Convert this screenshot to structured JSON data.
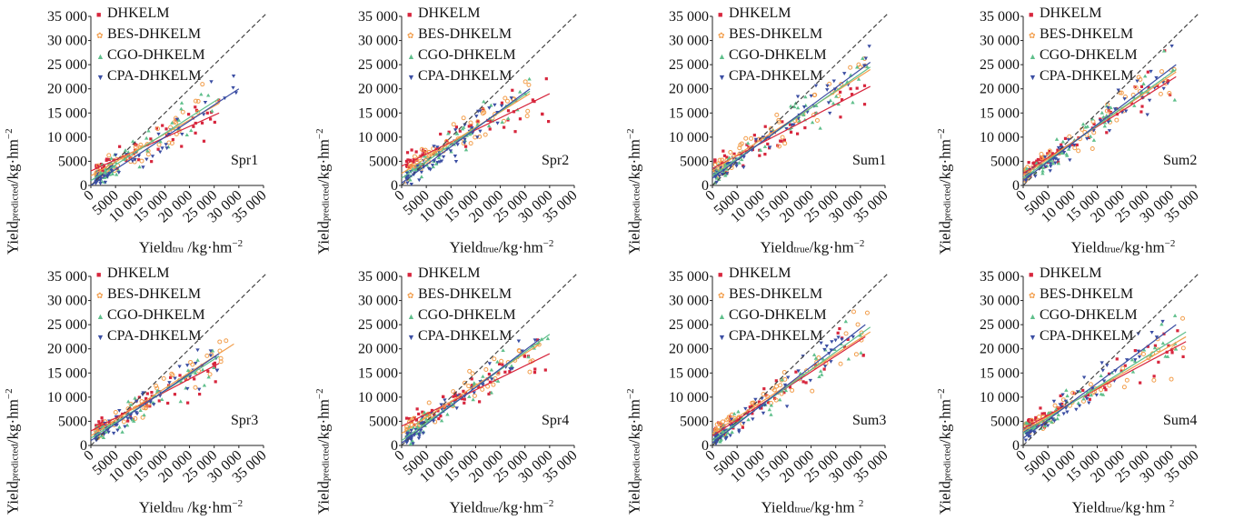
{
  "colors": {
    "DHKELM": "#d7263d",
    "BES-DHKELM": "#f29e4c",
    "CGO-DHKELM": "#5fbf8b",
    "CPA-DHKELM": "#3b4ea3",
    "diagonal": "#444444"
  },
  "markers": {
    "DHKELM": "■",
    "BES-DHKELM": "✿",
    "CGO-DHKELM": "▲",
    "CPA-DHKELM": "▼"
  },
  "legend": [
    "DHKELM",
    "BES-DHKELM",
    "CGO-DHKELM",
    "CPA-DHKELM"
  ],
  "y_label": {
    "main": "Yield",
    "sub": "predicted",
    "unit": "/kg·hm",
    "sup": "−2"
  },
  "chart_data": [
    {
      "type": "scatter",
      "panel": "Spr1",
      "xlabel": {
        "main": "Yield",
        "sub": "tru",
        "unit": " /kg·hm",
        "sup": "−2"
      },
      "xticks": [
        "0",
        "5000",
        "10 000",
        "15 000",
        "20 000",
        "25 000",
        "30 000",
        "35 000"
      ],
      "yticks": [
        "0",
        "5000",
        "10 000",
        "15 000",
        "20 000",
        "25 000",
        "30 000",
        "35 000"
      ],
      "xlim": [
        0,
        35000
      ],
      "ylim": [
        0,
        35000
      ],
      "diagonal": true,
      "series": [
        {
          "name": "DHKELM",
          "fit": [
            [
              0,
              3000
            ],
            [
              26000,
              15000
            ]
          ],
          "cloud": {
            "xmin": 1000,
            "xmax": 26000,
            "slope": 0.46,
            "intercept": 3000,
            "noise": 2600,
            "n": 55
          }
        },
        {
          "name": "BES-DHKELM",
          "fit": [
            [
              0,
              2000
            ],
            [
              26000,
              17000
            ]
          ],
          "cloud": {
            "xmin": 1000,
            "xmax": 26000,
            "slope": 0.58,
            "intercept": 2000,
            "noise": 2800,
            "n": 55
          }
        },
        {
          "name": "CGO-DHKELM",
          "fit": [
            [
              0,
              1000
            ],
            [
              26000,
              18000
            ]
          ],
          "cloud": {
            "xmin": 1000,
            "xmax": 26000,
            "slope": 0.66,
            "intercept": 1000,
            "noise": 2800,
            "n": 55
          }
        },
        {
          "name": "CPA-DHKELM",
          "fit": [
            [
              0,
              0
            ],
            [
              30000,
              20000
            ]
          ],
          "cloud": {
            "xmin": 1000,
            "xmax": 30000,
            "slope": 0.66,
            "intercept": 0,
            "noise": 2800,
            "n": 55
          }
        }
      ]
    },
    {
      "type": "scatter",
      "panel": "Spr2",
      "xlabel": {
        "main": "Yield",
        "sub": "true",
        "unit": "/kg·hm",
        "sup": "−2"
      },
      "xticks": [
        "0",
        "5000",
        "10 000",
        "15 000",
        "20 000",
        "25 000",
        "30 000",
        "35 000"
      ],
      "yticks": [
        "0",
        "5000",
        "10 000",
        "15 000",
        "20 000",
        "25 000",
        "30 000",
        "35 000"
      ],
      "xlim": [
        0,
        35000
      ],
      "ylim": [
        0,
        35000
      ],
      "diagonal": true,
      "series": [
        {
          "name": "DHKELM",
          "fit": [
            [
              0,
              4000
            ],
            [
              30000,
              19000
            ]
          ],
          "cloud": {
            "xmin": 1000,
            "xmax": 30000,
            "slope": 0.5,
            "intercept": 4000,
            "noise": 2700,
            "n": 55
          }
        },
        {
          "name": "BES-DHKELM",
          "fit": [
            [
              0,
              2500
            ],
            [
              26000,
              19000
            ]
          ],
          "cloud": {
            "xmin": 1000,
            "xmax": 26000,
            "slope": 0.63,
            "intercept": 2500,
            "noise": 2800,
            "n": 55
          }
        },
        {
          "name": "CGO-DHKELM",
          "fit": [
            [
              0,
              1500
            ],
            [
              26000,
              19500
            ]
          ],
          "cloud": {
            "xmin": 1000,
            "xmax": 26000,
            "slope": 0.69,
            "intercept": 1500,
            "noise": 2800,
            "n": 55
          }
        },
        {
          "name": "CPA-DHKELM",
          "fit": [
            [
              0,
              500
            ],
            [
              26000,
              20000
            ]
          ],
          "cloud": {
            "xmin": 1000,
            "xmax": 26000,
            "slope": 0.75,
            "intercept": 500,
            "noise": 2800,
            "n": 55
          }
        }
      ]
    },
    {
      "type": "scatter",
      "panel": "Sum1",
      "xlabel": {
        "main": "Yield",
        "sub": "true",
        "unit": "/kg·hm",
        "sup": "−2"
      },
      "xticks": [
        "0",
        "5000",
        "10 000",
        "15 000",
        "20 000",
        "25 000",
        "30 000",
        "35 000"
      ],
      "yticks": [
        "0",
        "5000",
        "10 000",
        "15 000",
        "20 000",
        "25 000",
        "30 000",
        "35 000"
      ],
      "xlim": [
        0,
        35000
      ],
      "ylim": [
        0,
        35000
      ],
      "diagonal": true,
      "series": [
        {
          "name": "DHKELM",
          "fit": [
            [
              0,
              3500
            ],
            [
              32000,
              20500
            ]
          ],
          "cloud": {
            "xmin": 500,
            "xmax": 32000,
            "slope": 0.53,
            "intercept": 3500,
            "noise": 2800,
            "n": 55
          }
        },
        {
          "name": "BES-DHKELM",
          "fit": [
            [
              0,
              3000
            ],
            [
              32000,
              24000
            ]
          ],
          "cloud": {
            "xmin": 500,
            "xmax": 32000,
            "slope": 0.66,
            "intercept": 3000,
            "noise": 2800,
            "n": 55
          }
        },
        {
          "name": "CGO-DHKELM",
          "fit": [
            [
              0,
              2000
            ],
            [
              32000,
              24500
            ]
          ],
          "cloud": {
            "xmin": 500,
            "xmax": 32000,
            "slope": 0.7,
            "intercept": 2000,
            "noise": 2800,
            "n": 55
          }
        },
        {
          "name": "CPA-DHKELM",
          "fit": [
            [
              0,
              1500
            ],
            [
              32000,
              25500
            ]
          ],
          "cloud": {
            "xmin": 500,
            "xmax": 32000,
            "slope": 0.75,
            "intercept": 1500,
            "noise": 2800,
            "n": 55
          }
        }
      ]
    },
    {
      "type": "scatter",
      "panel": "Sum2",
      "xlabel": {
        "main": "Yield",
        "sub": "true",
        "unit": "/kg·hm",
        "sup": "−2"
      },
      "xticks": [
        "0",
        "5000",
        "10 000",
        "15 000",
        "20 000",
        "25 000",
        "30 000",
        "35 000"
      ],
      "yticks": [
        "0",
        "5000",
        "10 000",
        "15 000",
        "20 000",
        "25 000",
        "30 000",
        "35 000"
      ],
      "xlim": [
        0,
        35000
      ],
      "ylim": [
        0,
        35000
      ],
      "diagonal": true,
      "series": [
        {
          "name": "DHKELM",
          "fit": [
            [
              0,
              2500
            ],
            [
              31000,
              22500
            ]
          ],
          "cloud": {
            "xmin": 500,
            "xmax": 31000,
            "slope": 0.65,
            "intercept": 2500,
            "noise": 2500,
            "n": 55
          }
        },
        {
          "name": "BES-DHKELM",
          "fit": [
            [
              0,
              2000
            ],
            [
              31000,
              23500
            ]
          ],
          "cloud": {
            "xmin": 500,
            "xmax": 31000,
            "slope": 0.69,
            "intercept": 2000,
            "noise": 2500,
            "n": 55
          }
        },
        {
          "name": "CGO-DHKELM",
          "fit": [
            [
              0,
              1500
            ],
            [
              31000,
              24000
            ]
          ],
          "cloud": {
            "xmin": 500,
            "xmax": 31000,
            "slope": 0.73,
            "intercept": 1500,
            "noise": 2500,
            "n": 55
          }
        },
        {
          "name": "CPA-DHKELM",
          "fit": [
            [
              0,
              1000
            ],
            [
              31000,
              25000
            ]
          ],
          "cloud": {
            "xmin": 500,
            "xmax": 31000,
            "slope": 0.77,
            "intercept": 1000,
            "noise": 2500,
            "n": 55
          }
        }
      ]
    },
    {
      "type": "scatter",
      "panel": "Spr3",
      "xlabel": {
        "main": "Yield",
        "sub": "tru",
        "unit": " /kg·hm",
        "sup": "−2"
      },
      "xticks": [
        "0",
        "5000",
        "10 000",
        "15 000",
        "20 000",
        "25 000",
        "30 000",
        "35 000"
      ],
      "yticks": [
        "0",
        "5000",
        "10 000",
        "15 000",
        "20 000",
        "25 000",
        "30 000",
        "35 000"
      ],
      "xlim": [
        0,
        35000
      ],
      "ylim": [
        0,
        35000
      ],
      "diagonal": true,
      "series": [
        {
          "name": "DHKELM",
          "fit": [
            [
              0,
              3000
            ],
            [
              26000,
              17000
            ]
          ],
          "cloud": {
            "xmin": 1000,
            "xmax": 26000,
            "slope": 0.54,
            "intercept": 3000,
            "noise": 2500,
            "n": 55
          }
        },
        {
          "name": "BES-DHKELM",
          "fit": [
            [
              0,
              2000
            ],
            [
              29000,
              21000
            ]
          ],
          "cloud": {
            "xmin": 1000,
            "xmax": 29000,
            "slope": 0.65,
            "intercept": 2000,
            "noise": 2500,
            "n": 55
          }
        },
        {
          "name": "CGO-DHKELM",
          "fit": [
            [
              0,
              1500
            ],
            [
              26000,
              18500
            ]
          ],
          "cloud": {
            "xmin": 1000,
            "xmax": 26000,
            "slope": 0.65,
            "intercept": 1500,
            "noise": 2500,
            "n": 55
          }
        },
        {
          "name": "CPA-DHKELM",
          "fit": [
            [
              0,
              1000
            ],
            [
              26000,
              19000
            ]
          ],
          "cloud": {
            "xmin": 1000,
            "xmax": 26000,
            "slope": 0.69,
            "intercept": 1000,
            "noise": 2500,
            "n": 55
          }
        }
      ]
    },
    {
      "type": "scatter",
      "panel": "Spr4",
      "xlabel": {
        "main": "Yield",
        "sub": "true",
        "unit": "/kg·hm",
        "sup": "−2"
      },
      "xticks": [
        "0",
        "5000",
        "10 000",
        "15 000",
        "20 000",
        "25 000",
        "30 000",
        "35 000"
      ],
      "yticks": [
        "0",
        "5000",
        "10 000",
        "15 000",
        "20 000",
        "25 000",
        "30 000",
        "35 000"
      ],
      "xlim": [
        0,
        35000
      ],
      "ylim": [
        0,
        35000
      ],
      "diagonal": true,
      "series": [
        {
          "name": "DHKELM",
          "fit": [
            [
              0,
              4000
            ],
            [
              30000,
              19000
            ]
          ],
          "cloud": {
            "xmin": 1000,
            "xmax": 30000,
            "slope": 0.5,
            "intercept": 4000,
            "noise": 2600,
            "n": 55
          }
        },
        {
          "name": "BES-DHKELM",
          "fit": [
            [
              0,
              2500
            ],
            [
              28000,
              21000
            ]
          ],
          "cloud": {
            "xmin": 1000,
            "xmax": 28000,
            "slope": 0.66,
            "intercept": 2500,
            "noise": 2600,
            "n": 55
          }
        },
        {
          "name": "CGO-DHKELM",
          "fit": [
            [
              0,
              1000
            ],
            [
              30000,
              23000
            ]
          ],
          "cloud": {
            "xmin": 1000,
            "xmax": 30000,
            "slope": 0.73,
            "intercept": 1000,
            "noise": 2600,
            "n": 55
          }
        },
        {
          "name": "CPA-DHKELM",
          "fit": [
            [
              0,
              500
            ],
            [
              28000,
              22000
            ]
          ],
          "cloud": {
            "xmin": 1000,
            "xmax": 28000,
            "slope": 0.77,
            "intercept": 500,
            "noise": 2600,
            "n": 55
          }
        }
      ]
    },
    {
      "type": "scatter",
      "panel": "Sum3",
      "xlabel": {
        "main": "Yield",
        "sub": "true",
        "unit": "/kg·hm ",
        "sup": "2"
      },
      "xticks": [
        "0",
        "5000",
        "10 000",
        "15 000",
        "20 000",
        "25 000",
        "30 000",
        "35 000"
      ],
      "yticks": [
        "0",
        "5000",
        "10 000",
        "15 000",
        "20 000",
        "25 000",
        "30 000",
        "35 000"
      ],
      "xlim": [
        0,
        35000
      ],
      "ylim": [
        0,
        35000
      ],
      "diagonal": true,
      "series": [
        {
          "name": "DHKELM",
          "fit": [
            [
              0,
              2000
            ],
            [
              31000,
              22500
            ]
          ],
          "cloud": {
            "xmin": 500,
            "xmax": 31000,
            "slope": 0.66,
            "intercept": 2000,
            "noise": 2800,
            "n": 55
          }
        },
        {
          "name": "BES-DHKELM",
          "fit": [
            [
              0,
              2500
            ],
            [
              32000,
              23500
            ]
          ],
          "cloud": {
            "xmin": 500,
            "xmax": 32000,
            "slope": 0.66,
            "intercept": 2500,
            "noise": 2800,
            "n": 55
          }
        },
        {
          "name": "CGO-DHKELM",
          "fit": [
            [
              0,
              1000
            ],
            [
              32000,
              24500
            ]
          ],
          "cloud": {
            "xmin": 500,
            "xmax": 32000,
            "slope": 0.73,
            "intercept": 1000,
            "noise": 2800,
            "n": 55
          }
        },
        {
          "name": "CPA-DHKELM",
          "fit": [
            [
              0,
              500
            ],
            [
              31000,
              25000
            ]
          ],
          "cloud": {
            "xmin": 500,
            "xmax": 31000,
            "slope": 0.79,
            "intercept": 500,
            "noise": 2800,
            "n": 55
          }
        }
      ]
    },
    {
      "type": "scatter",
      "panel": "Sum4",
      "xlabel": {
        "main": "Yield",
        "sub": "true",
        "unit": "/kg·hm ",
        "sup": "2"
      },
      "xticks": [
        "0",
        "5000",
        "10 000",
        "15 000",
        "20 000",
        "25 000",
        "30 000",
        "35 000"
      ],
      "yticks": [
        "0",
        "5000",
        "10 000",
        "15 000",
        "20 000",
        "25 000",
        "30 000",
        "35 000"
      ],
      "xlim": [
        0,
        35000
      ],
      "ylim": [
        0,
        35000
      ],
      "diagonal": true,
      "series": [
        {
          "name": "DHKELM",
          "fit": [
            [
              0,
              3500
            ],
            [
              33000,
              21500
            ]
          ],
          "cloud": {
            "xmin": 500,
            "xmax": 33000,
            "slope": 0.55,
            "intercept": 3500,
            "noise": 2600,
            "n": 55
          }
        },
        {
          "name": "BES-DHKELM",
          "fit": [
            [
              0,
              3000
            ],
            [
              33000,
              22500
            ]
          ],
          "cloud": {
            "xmin": 500,
            "xmax": 33000,
            "slope": 0.59,
            "intercept": 3000,
            "noise": 2600,
            "n": 55
          }
        },
        {
          "name": "CGO-DHKELM",
          "fit": [
            [
              0,
              2500
            ],
            [
              33000,
              23500
            ]
          ],
          "cloud": {
            "xmin": 500,
            "xmax": 33000,
            "slope": 0.64,
            "intercept": 2500,
            "noise": 2600,
            "n": 55
          }
        },
        {
          "name": "CPA-DHKELM",
          "fit": [
            [
              0,
              1500
            ],
            [
              31000,
              25000
            ]
          ],
          "cloud": {
            "xmin": 500,
            "xmax": 31000,
            "slope": 0.76,
            "intercept": 1500,
            "noise": 2600,
            "n": 55
          }
        }
      ]
    }
  ]
}
